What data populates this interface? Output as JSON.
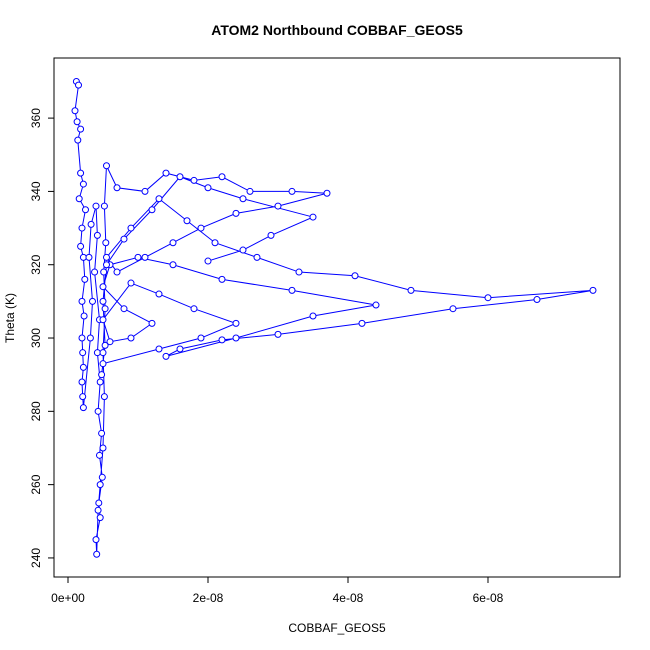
{
  "chart_data": {
    "type": "line",
    "title": "ATOM2 Northbound COBBAF_GEOS5",
    "x_label": "COBBAF_GEOS5",
    "y_label": "Theta (K)",
    "color": "#0000ff",
    "markers": true,
    "xlim": [
      -2e-09,
      7.886e-08
    ],
    "ylim": [
      234.8,
      376.4
    ],
    "xticks": [
      {
        "value": 0,
        "label": "0e+00"
      },
      {
        "value": 2e-08,
        "label": "2e-08"
      },
      {
        "value": 4e-08,
        "label": "4e-08"
      },
      {
        "value": 6e-08,
        "label": "6e-08"
      }
    ],
    "yticks": [
      240,
      260,
      280,
      300,
      320,
      340,
      360
    ],
    "x": [
      1.2e-09,
      1.5e-09,
      1e-09,
      1.3e-09,
      1.8e-09,
      1.4e-09,
      1.8e-09,
      2.2e-09,
      1.6e-09,
      2.5e-09,
      2e-09,
      1.8e-09,
      2.2e-09,
      2.4e-09,
      2e-09,
      2.3e-09,
      2e-09,
      2.1e-09,
      2.2e-09,
      2e-09,
      2.1e-09,
      2.2e-09,
      3.2e-09,
      3.5e-09,
      3e-09,
      3.3e-09,
      4e-09,
      4.2e-09,
      3.8e-09,
      4.5e-09,
      4.2e-09,
      4.6e-09,
      4.3e-09,
      4.8e-09,
      4.5e-09,
      4.9e-09,
      4.4e-09,
      4.6e-09,
      4e-09,
      4.1e-09,
      4.3e-09,
      4.6e-09,
      5e-09,
      5.2e-09,
      5e-09,
      5.3e-09,
      5.1e-09,
      5.4e-09,
      5.2e-09,
      5.5e-09,
      7e-09,
      1.1e-08,
      1.4e-08,
      1.8e-08,
      2.2e-08,
      2.6e-08,
      3.2e-08,
      3.7e-08,
      3e-08,
      2.4e-08,
      1.9e-08,
      1.5e-08,
      1.1e-08,
      7e-09,
      5.5e-09,
      9e-09,
      1.3e-08,
      1.7e-08,
      2.1e-08,
      2.7e-08,
      3.3e-08,
      4.1e-08,
      4.9e-08,
      6e-08,
      7.5e-08,
      6.7e-08,
      5.5e-08,
      4.2e-08,
      3e-08,
      2.2e-08,
      1.6e-08,
      1.4e-08,
      2.4e-08,
      3.5e-08,
      4.4e-08,
      3.2e-08,
      2.2e-08,
      1.5e-08,
      1e-08,
      6e-09,
      5e-09,
      8e-09,
      1.2e-08,
      9e-09,
      6e-09,
      5e-09,
      9e-09,
      1.3e-08,
      1.8e-08,
      2.4e-08,
      1.9e-08,
      1.3e-08,
      5e-09,
      4.8e-09,
      5.3e-09,
      5e-09,
      5.5e-09,
      8e-09,
      1.2e-08,
      1.6e-08,
      2e-08,
      2.5e-08,
      3.5e-08,
      2.9e-08,
      2.5e-08,
      2e-08
    ],
    "values": [
      370,
      369,
      362,
      359,
      357,
      354,
      345,
      342,
      338,
      335,
      330,
      325,
      322,
      316,
      310,
      306,
      300,
      296,
      292,
      288,
      284,
      281,
      300,
      310,
      322,
      331,
      336,
      328,
      318,
      305,
      296,
      288,
      280,
      274,
      268,
      262,
      255,
      251,
      245,
      241,
      253,
      260,
      270,
      284,
      296,
      308,
      318,
      326,
      336,
      347,
      341,
      340,
      345,
      343,
      344,
      340,
      340,
      339.5,
      336,
      334,
      330,
      326,
      322,
      318,
      322,
      330,
      338,
      332,
      326,
      322,
      318,
      317,
      313,
      311,
      313,
      310.5,
      308,
      304,
      301,
      299.5,
      297,
      295,
      300,
      306,
      309,
      313,
      316,
      320,
      322,
      320,
      314,
      308,
      304,
      300,
      299,
      305,
      315,
      312,
      308,
      304,
      300,
      297,
      293,
      290,
      298,
      310,
      320,
      327,
      335,
      344,
      341,
      338,
      333,
      328,
      324,
      321
    ]
  }
}
